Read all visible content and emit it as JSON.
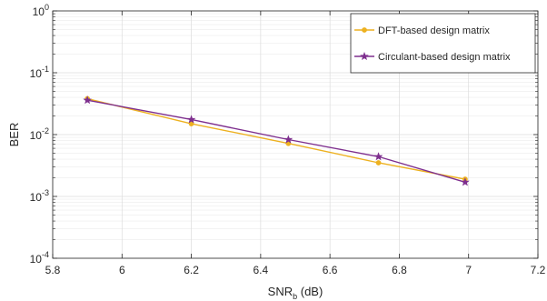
{
  "chart_data": {
    "type": "line",
    "title": "",
    "xlabel": "SNR",
    "xlabel_sub": "b",
    "xlabel_suffix": " (dB)",
    "ylabel": "BER",
    "xlim": [
      5.8,
      7.2
    ],
    "ylim": [
      0.0001,
      1
    ],
    "yscale": "log",
    "grid": true,
    "minor_grid": true,
    "legend_position": "top-right",
    "x_ticks": [
      5.8,
      6,
      6.2,
      6.4,
      6.6,
      6.8,
      7,
      7.2
    ],
    "x_tick_labels": [
      "5.8",
      "6",
      "6.2",
      "6.4",
      "6.6",
      "6.8",
      "7",
      "7.2"
    ],
    "y_ticks": [
      {
        "value": 0.0001,
        "base": "10",
        "exp": "-4"
      },
      {
        "value": 0.001,
        "base": "10",
        "exp": "-3"
      },
      {
        "value": 0.01,
        "base": "10",
        "exp": "-2"
      },
      {
        "value": 0.1,
        "base": "10",
        "exp": "-1"
      },
      {
        "value": 1,
        "base": "10",
        "exp": "0"
      }
    ],
    "series": [
      {
        "name": "DFT-based design matrix",
        "color": "#EDB120",
        "marker": "circle",
        "x": [
          5.9,
          6.2,
          6.48,
          6.74,
          6.99
        ],
        "y": [
          0.038,
          0.015,
          0.0072,
          0.0035,
          0.0019
        ]
      },
      {
        "name": "Circulant-based design matrix",
        "color": "#7E2F8E",
        "marker": "star",
        "x": [
          5.9,
          6.2,
          6.48,
          6.74,
          6.99
        ],
        "y": [
          0.036,
          0.0175,
          0.0083,
          0.0044,
          0.0017
        ]
      }
    ]
  }
}
